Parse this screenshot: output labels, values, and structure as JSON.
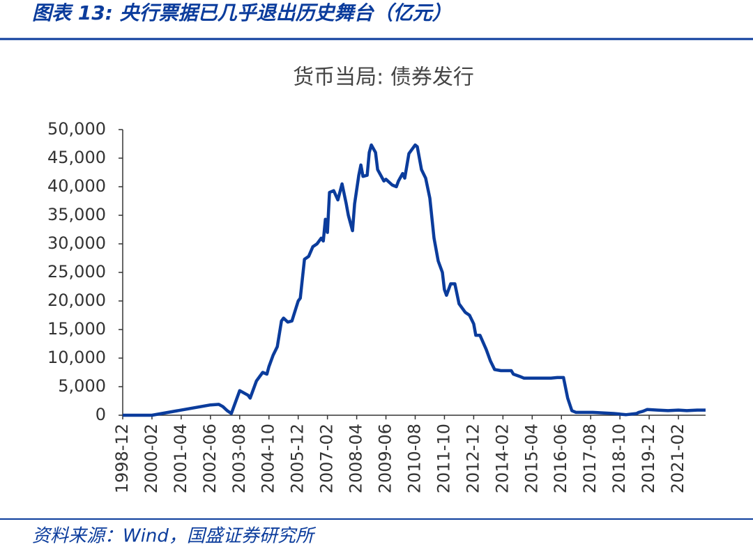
{
  "header": {
    "title": "图表 13:  央行票据已几乎退出历史舞台（亿元）"
  },
  "footer": {
    "source": "资料来源：Wind，国盛证券研究所"
  },
  "chart_data": {
    "type": "line",
    "title": "货币当局: 债券发行",
    "x": [
      "1998-12",
      "2000-02",
      "2002-06",
      "2002-10",
      "2002-12",
      "2003-02",
      "2003-04",
      "2003-08",
      "2003-12",
      "2004-01",
      "2004-02",
      "2004-04",
      "2004-05",
      "2004-07",
      "2004-09",
      "2004-10",
      "2004-12",
      "2005-02",
      "2005-04",
      "2005-05",
      "2005-07",
      "2005-09",
      "2005-12",
      "2006-01",
      "2006-03",
      "2006-05",
      "2006-07",
      "2006-09",
      "2006-11",
      "2006-12",
      "2007-01",
      "2007-02",
      "2007-03",
      "2007-05",
      "2007-07",
      "2007-09",
      "2007-11",
      "2007-12",
      "2008-02",
      "2008-03",
      "2008-05",
      "2008-06",
      "2008-07",
      "2008-09",
      "2008-10",
      "2008-11",
      "2009-01",
      "2009-02",
      "2009-05",
      "2009-06",
      "2009-09",
      "2009-11",
      "2009-12",
      "2010-02",
      "2010-03",
      "2010-05",
      "2010-08",
      "2010-09",
      "2010-11",
      "2011-01",
      "2011-03",
      "2011-05",
      "2011-06",
      "2011-07",
      "2011-09",
      "2011-10",
      "2011-11",
      "2012-01",
      "2012-03",
      "2012-05",
      "2012-08",
      "2012-10",
      "2012-12",
      "2013-01",
      "2013-03",
      "2013-06",
      "2013-08",
      "2013-10",
      "2014-01",
      "2014-06",
      "2014-07",
      "2014-10",
      "2014-12",
      "2016-01",
      "2016-04",
      "2016-07",
      "2016-09",
      "2016-11",
      "2017-01",
      "2017-09",
      "2018-07",
      "2019-01",
      "2019-06",
      "2019-07",
      "2019-09",
      "2019-11",
      "2020-04",
      "2020-09",
      "2021-02",
      "2021-06",
      "2021-11",
      "2022-03"
    ],
    "series": [
      {
        "name": "货币当局: 债券发行",
        "color": "#0b3c9c",
        "values": [
          0,
          0,
          1800,
          1900,
          1500,
          800,
          300,
          4300,
          3500,
          3000,
          4000,
          6000,
          6500,
          7500,
          7200,
          8500,
          10500,
          12000,
          16500,
          17000,
          16300,
          16500,
          20000,
          20500,
          27300,
          27800,
          29500,
          30000,
          31000,
          30500,
          34300,
          32000,
          39000,
          39300,
          37700,
          40500,
          37000,
          35000,
          32300,
          37000,
          42000,
          43800,
          41800,
          42000,
          46000,
          47300,
          46000,
          43000,
          41000,
          41300,
          40300,
          40000,
          41000,
          42300,
          41500,
          45800,
          47300,
          47000,
          43000,
          41500,
          38000,
          31000,
          29000,
          27000,
          25000,
          22000,
          21000,
          23000,
          23000,
          19500,
          18000,
          17500,
          16000,
          14000,
          14000,
          11500,
          9500,
          8000,
          7800,
          7800,
          7200,
          6800,
          6500,
          6500,
          6600,
          6600,
          3000,
          800,
          500,
          500,
          300,
          100,
          300,
          500,
          700,
          1000,
          900,
          800,
          900,
          800,
          900,
          900
        ]
      }
    ],
    "xlim": [
      "1998-12",
      "2022-03"
    ],
    "xticks": [
      "1998-12",
      "2000-02",
      "2001-04",
      "2002-06",
      "2003-08",
      "2004-10",
      "2005-12",
      "2007-02",
      "2008-04",
      "2009-06",
      "2010-08",
      "2011-10",
      "2012-12",
      "2014-02",
      "2015-04",
      "2016-06",
      "2017-08",
      "2018-10",
      "2019-12",
      "2021-02"
    ],
    "ylim": [
      0,
      50000
    ],
    "yticks": [
      0,
      {
        "value": 5000,
        "label": "5,000"
      },
      {
        "value": 10000,
        "label": "10,000"
      },
      {
        "value": 15000,
        "label": "15,000"
      },
      {
        "value": 20000,
        "label": "20,000"
      },
      {
        "value": 25000,
        "label": "25,000"
      },
      {
        "value": 30000,
        "label": "30,000"
      },
      {
        "value": 35000,
        "label": "35,000"
      },
      {
        "value": 40000,
        "label": "40,000"
      },
      {
        "value": 45000,
        "label": "45,000"
      },
      {
        "value": 50000,
        "label": "50,000"
      }
    ],
    "grid": false
  }
}
